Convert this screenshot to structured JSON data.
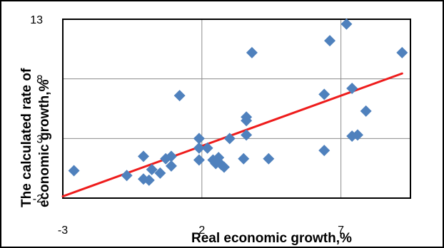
{
  "chart_data": {
    "type": "scatter",
    "title": "",
    "xlabel": "Real economic growth,%",
    "ylabel_lines": [
      "The calculated rate of",
      "economic growth,%"
    ],
    "xlim": [
      -3,
      9.5
    ],
    "ylim": [
      -2,
      13
    ],
    "x_ticks": [
      -3,
      2,
      7
    ],
    "x_tick_labels": [
      "-3",
      "2",
      "7"
    ],
    "y_ticks": [
      -2,
      3,
      8,
      13
    ],
    "y_tick_labels": [
      "-2",
      "3",
      "8",
      "13"
    ],
    "grid": true,
    "colors": {
      "points": "#4f81bd",
      "trend": "#ee1c1c",
      "grid": "#8c8c8c",
      "axis": "#000000"
    },
    "series": [
      {
        "points": [
          [
            -2.6,
            0.3
          ],
          [
            -0.7,
            -0.1
          ],
          [
            -0.1,
            1.5
          ],
          [
            -0.1,
            -0.4
          ],
          [
            0.1,
            -0.5
          ],
          [
            0.2,
            0.4
          ],
          [
            0.5,
            0.1
          ],
          [
            0.7,
            1.3
          ],
          [
            0.9,
            0.7
          ],
          [
            0.9,
            1.5
          ],
          [
            1.2,
            6.6
          ],
          [
            1.9,
            3.0
          ],
          [
            1.9,
            2.2
          ],
          [
            1.9,
            1.2
          ],
          [
            2.2,
            2.2
          ],
          [
            2.4,
            1.2
          ],
          [
            2.5,
            0.9
          ],
          [
            2.6,
            1.4
          ],
          [
            2.7,
            0.8
          ],
          [
            2.8,
            0.6
          ],
          [
            3.0,
            3.0
          ],
          [
            3.5,
            1.3
          ],
          [
            3.6,
            4.5
          ],
          [
            3.6,
            4.8
          ],
          [
            3.6,
            3.3
          ],
          [
            3.8,
            10.2
          ],
          [
            4.4,
            1.3
          ],
          [
            6.4,
            6.7
          ],
          [
            6.4,
            2.0
          ],
          [
            6.6,
            11.2
          ],
          [
            7.2,
            12.6
          ],
          [
            7.4,
            7.2
          ],
          [
            7.4,
            3.2
          ],
          [
            7.6,
            3.3
          ],
          [
            7.9,
            5.3
          ],
          [
            9.2,
            10.2
          ]
        ]
      }
    ],
    "trendline": {
      "x": [
        -3,
        9.2
      ],
      "y": [
        -1.85,
        8.45
      ]
    }
  }
}
